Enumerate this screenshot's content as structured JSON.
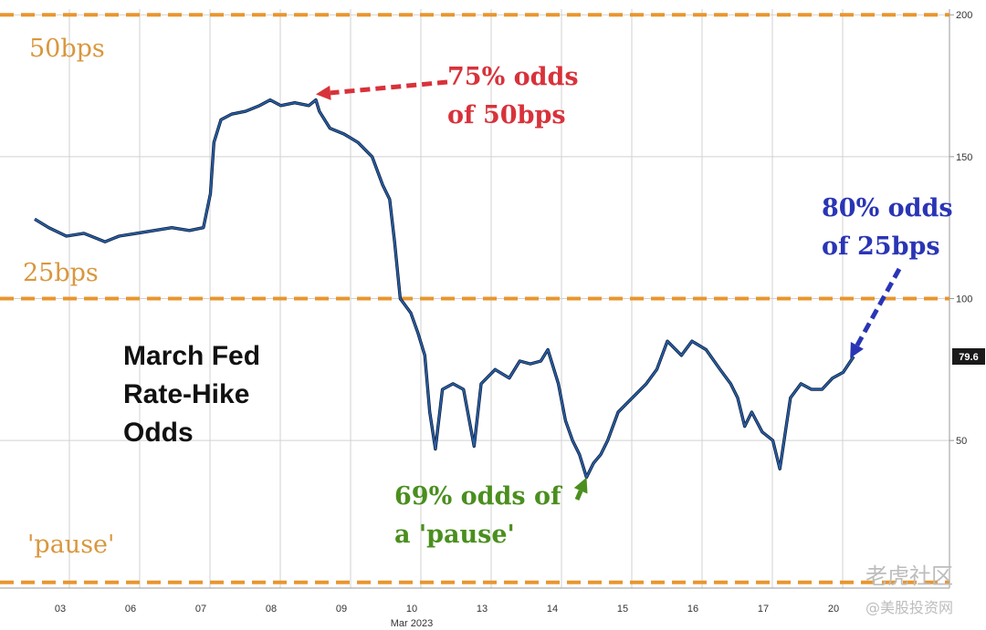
{
  "chart_data": {
    "type": "line",
    "title": "March Fed Rate-Hike Odds",
    "title_lines": [
      "March Fed",
      "Rate-Hike",
      "Odds"
    ],
    "x_month_label": "Mar 2023",
    "x_categories": [
      "03",
      "06",
      "07",
      "08",
      "09",
      "10",
      "13",
      "14",
      "15",
      "16",
      "17",
      "20"
    ],
    "ylim": [
      -2,
      202
    ],
    "y_ticks": [
      50,
      100,
      150,
      200
    ],
    "grid": true,
    "series": [
      {
        "color": "#2a5fa8",
        "points": [
          [
            0.0,
            128
          ],
          [
            0.2,
            125
          ],
          [
            0.45,
            122
          ],
          [
            0.7,
            123
          ],
          [
            0.9,
            121
          ],
          [
            1.0,
            120
          ],
          [
            1.2,
            122
          ],
          [
            1.45,
            123
          ],
          [
            1.7,
            124
          ],
          [
            1.95,
            125
          ],
          [
            2.2,
            124
          ],
          [
            2.4,
            125
          ],
          [
            2.5,
            137
          ],
          [
            2.55,
            155
          ],
          [
            2.65,
            163
          ],
          [
            2.8,
            165
          ],
          [
            3.0,
            166
          ],
          [
            3.2,
            168
          ],
          [
            3.35,
            170
          ],
          [
            3.5,
            168
          ],
          [
            3.7,
            169
          ],
          [
            3.9,
            168
          ],
          [
            4.0,
            170
          ],
          [
            4.05,
            166
          ],
          [
            4.2,
            160
          ],
          [
            4.4,
            158
          ],
          [
            4.6,
            155
          ],
          [
            4.8,
            150
          ],
          [
            4.95,
            140
          ],
          [
            5.05,
            135
          ],
          [
            5.12,
            120
          ],
          [
            5.2,
            100
          ],
          [
            5.35,
            95
          ],
          [
            5.45,
            88
          ],
          [
            5.55,
            80
          ],
          [
            5.62,
            60
          ],
          [
            5.7,
            47
          ],
          [
            5.8,
            68
          ],
          [
            5.95,
            70
          ],
          [
            6.1,
            68
          ],
          [
            6.25,
            48
          ],
          [
            6.35,
            70
          ],
          [
            6.55,
            75
          ],
          [
            6.75,
            72
          ],
          [
            6.9,
            78
          ],
          [
            7.05,
            77
          ],
          [
            7.2,
            78
          ],
          [
            7.3,
            82
          ],
          [
            7.45,
            70
          ],
          [
            7.55,
            57
          ],
          [
            7.65,
            50
          ],
          [
            7.75,
            45
          ],
          [
            7.85,
            37
          ],
          [
            7.95,
            42
          ],
          [
            8.05,
            45
          ],
          [
            8.15,
            50
          ],
          [
            8.3,
            60
          ],
          [
            8.5,
            65
          ],
          [
            8.7,
            70
          ],
          [
            8.85,
            75
          ],
          [
            9.0,
            85
          ],
          [
            9.2,
            80
          ],
          [
            9.35,
            85
          ],
          [
            9.55,
            82
          ],
          [
            9.75,
            75
          ],
          [
            9.9,
            70
          ],
          [
            10.0,
            65
          ],
          [
            10.1,
            55
          ],
          [
            10.2,
            60
          ],
          [
            10.35,
            53
          ],
          [
            10.5,
            50
          ],
          [
            10.6,
            40
          ],
          [
            10.75,
            65
          ],
          [
            10.9,
            70
          ],
          [
            11.05,
            68
          ],
          [
            11.2,
            68
          ],
          [
            11.35,
            72
          ],
          [
            11.5,
            74
          ],
          [
            11.65,
            79.6
          ]
        ]
      }
    ],
    "last_value": "79.6",
    "band_labels": [
      {
        "text": "50bps",
        "y": 200
      },
      {
        "text": "25bps",
        "y": 100
      },
      {
        "text": "'pause'",
        "y": 0
      }
    ],
    "annotations": [
      {
        "lines": [
          "75% odds",
          "of 50bps"
        ],
        "color": "#d8323a",
        "target": [
          4.0,
          172
        ]
      },
      {
        "lines": [
          "80% odds",
          "of 25bps"
        ],
        "color": "#2a35b5",
        "target": [
          11.6,
          79
        ]
      },
      {
        "lines": [
          "69% odds of",
          "a 'pause'"
        ],
        "color": "#4a8f1e",
        "target": [
          7.85,
          37
        ]
      }
    ]
  },
  "watermark": {
    "line1": "老虎社区",
    "line2": "@美股投资网"
  },
  "colors": {
    "band": "#e8962e",
    "grid": "#d2d2d2",
    "line": "#2a5fa8",
    "line_shadow": "#0b1f3a"
  }
}
